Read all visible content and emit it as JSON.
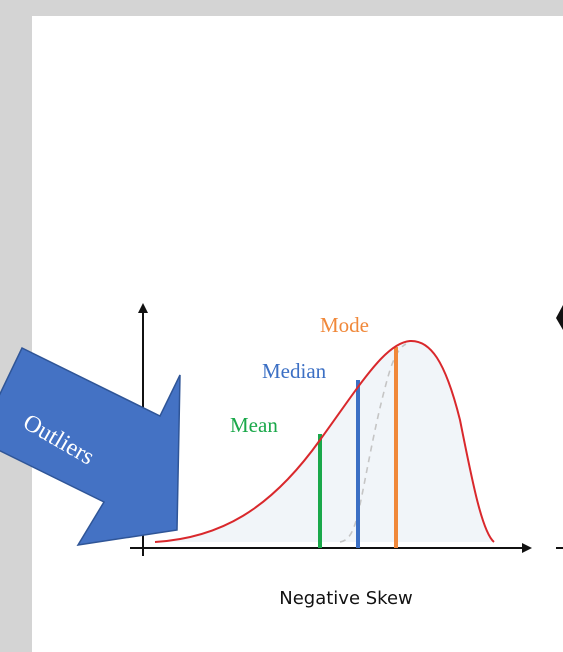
{
  "diagram": {
    "labels": {
      "mode": "Mode",
      "median": "Median",
      "mean": "Mean"
    },
    "caption": "Negative Skew",
    "callout": "Outliers",
    "colors": {
      "curve": "#d9282c",
      "mean": "#1aa84a",
      "median": "#3b6fc4",
      "mode": "#f0883a",
      "callout_fill": "#4472c4",
      "callout_stroke": "#2f5597",
      "slide_bg": "#ffffff",
      "page_bg": "#d4d4d4"
    }
  }
}
